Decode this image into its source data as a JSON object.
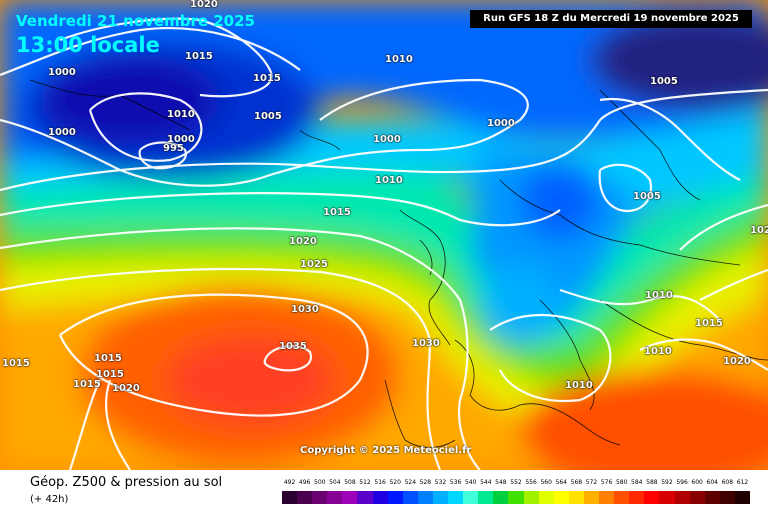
{
  "header": {
    "date": "Vendredi 21 novembre 2025",
    "time": "13:00 locale",
    "run": "Run GFS 18 Z du Mercredi 19 novembre 2025"
  },
  "copyright": "Copyright © 2025 Meteociel.fr",
  "footer": {
    "title": "Géop. Z500 & pression au sol",
    "subtitle": "(+ 42h)"
  },
  "scale": {
    "labels": [
      "492",
      "496",
      "500",
      "504",
      "508",
      "512",
      "516",
      "520",
      "524",
      "528",
      "532",
      "536",
      "540",
      "544",
      "548",
      "552",
      "556",
      "560",
      "564",
      "568",
      "572",
      "576",
      "580",
      "584",
      "588",
      "592",
      "596",
      "600",
      "604",
      "608",
      "612"
    ],
    "colors": [
      "#2b0030",
      "#4a004f",
      "#6a0072",
      "#860094",
      "#9c00b8",
      "#5a00c8",
      "#2000e0",
      "#0018ff",
      "#0050ff",
      "#0080ff",
      "#00b0ff",
      "#00d8ff",
      "#40ffd8",
      "#00e890",
      "#00d040",
      "#40e000",
      "#a0f000",
      "#e0ff00",
      "#ffff00",
      "#ffe000",
      "#ffb000",
      "#ff8000",
      "#ff5000",
      "#ff2800",
      "#ff0000",
      "#d80000",
      "#b00000",
      "#880000",
      "#600000",
      "#400000",
      "#200000"
    ]
  },
  "isobar_labels": [
    {
      "text": "1020"
    },
    {
      "text": "1000"
    },
    {
      "text": "1015"
    },
    {
      "text": "1015"
    },
    {
      "text": "1010"
    },
    {
      "text": "1000"
    },
    {
      "text": "1005"
    },
    {
      "text": "1010"
    },
    {
      "text": "1000"
    },
    {
      "text": "995"
    },
    {
      "text": "1000"
    },
    {
      "text": "1000"
    },
    {
      "text": "1005"
    },
    {
      "text": "1010"
    },
    {
      "text": "1015"
    },
    {
      "text": "1005"
    },
    {
      "text": "1020"
    },
    {
      "text": "1025"
    },
    {
      "text": "1030"
    },
    {
      "text": "1035"
    },
    {
      "text": "1030"
    },
    {
      "text": "1015"
    },
    {
      "text": "1015"
    },
    {
      "text": "1015"
    },
    {
      "text": "1015"
    },
    {
      "text": "1020"
    },
    {
      "text": "1010"
    },
    {
      "text": "1015"
    },
    {
      "text": "1010"
    },
    {
      "text": "1020"
    },
    {
      "text": "1010"
    },
    {
      "text": "102"
    }
  ]
}
